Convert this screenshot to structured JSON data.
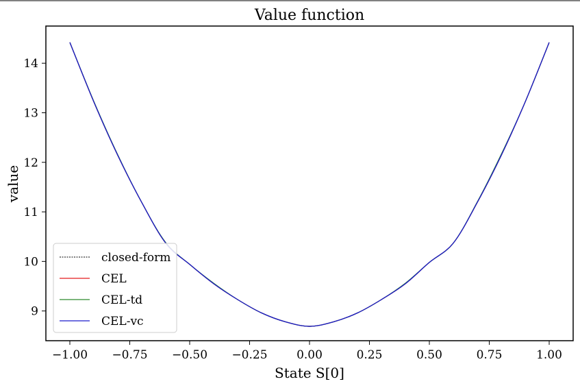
{
  "chart_data": {
    "type": "line",
    "title": "Value function",
    "xlabel": "State S[0]",
    "ylabel": "value",
    "xlim": [
      -1.1,
      1.1
    ],
    "ylim": [
      8.4,
      14.75
    ],
    "xticks": [
      -1.0,
      -0.75,
      -0.5,
      -0.25,
      0.0,
      0.25,
      0.5,
      0.75,
      1.0
    ],
    "xtick_labels": [
      "−1.00",
      "−0.75",
      "−0.50",
      "−0.25",
      "0.00",
      "0.25",
      "0.50",
      "0.75",
      "1.00"
    ],
    "yticks": [
      9,
      10,
      11,
      12,
      13,
      14
    ],
    "ytick_labels": [
      "9",
      "10",
      "11",
      "12",
      "13",
      "14"
    ],
    "grid": false,
    "legend_position": "lower-left",
    "x": [
      -1.0,
      -0.9,
      -0.8,
      -0.7,
      -0.6,
      -0.5,
      -0.4,
      -0.3,
      -0.2,
      -0.1,
      0.0,
      0.1,
      0.2,
      0.3,
      0.4,
      0.5,
      0.6,
      0.7,
      0.8,
      0.9,
      1.0
    ],
    "series": [
      {
        "name": "closed-form",
        "color": "#000000",
        "dashed": true,
        "values": [
          14.42,
          13.22,
          12.14,
          11.19,
          10.37,
          9.94,
          9.55,
          9.23,
          8.96,
          8.78,
          8.69,
          8.78,
          8.96,
          9.23,
          9.55,
          9.98,
          10.37,
          11.19,
          12.14,
          13.22,
          14.42
        ]
      },
      {
        "name": "CEL",
        "color": "#e41a1c",
        "dashed": false,
        "values": [
          14.42,
          13.22,
          12.14,
          11.19,
          10.37,
          9.94,
          9.55,
          9.23,
          8.96,
          8.78,
          8.69,
          8.78,
          8.96,
          9.23,
          9.55,
          9.98,
          10.37,
          11.19,
          12.14,
          13.22,
          14.42
        ]
      },
      {
        "name": "CEL-td",
        "color": "#2e8b2e",
        "dashed": false,
        "values": [
          14.42,
          13.23,
          12.15,
          11.19,
          10.38,
          9.94,
          9.56,
          9.23,
          8.96,
          8.78,
          8.69,
          8.78,
          8.96,
          9.23,
          9.56,
          9.98,
          10.37,
          11.2,
          12.16,
          13.22,
          14.42
        ]
      },
      {
        "name": "CEL-vc",
        "color": "#1a1acc",
        "dashed": false,
        "values": [
          14.42,
          13.22,
          12.14,
          11.19,
          10.37,
          9.94,
          9.55,
          9.23,
          8.96,
          8.78,
          8.69,
          8.78,
          8.96,
          9.23,
          9.55,
          9.98,
          10.37,
          11.19,
          12.14,
          13.22,
          14.42
        ]
      }
    ]
  }
}
